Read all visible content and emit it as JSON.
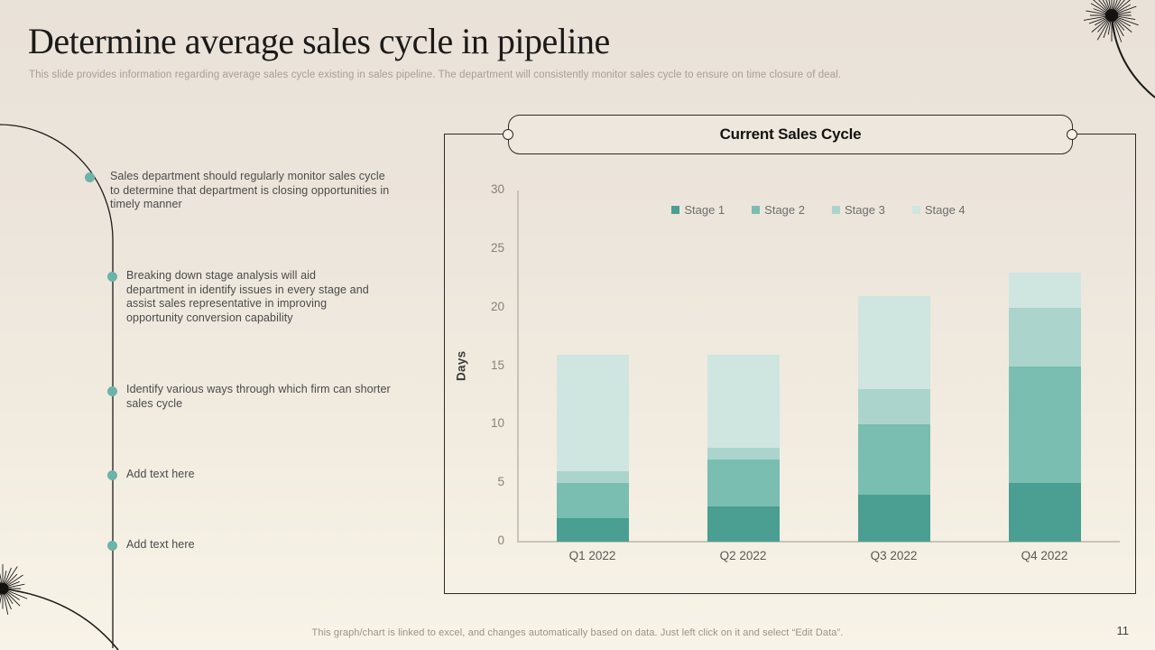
{
  "slide": {
    "title": "Determine average sales cycle in pipeline",
    "subtitle": "This slide provides information regarding average sales cycle existing in sales pipeline. The department will consistently monitor sales cycle to ensure on time closure of deal.",
    "footer_note": "This graph/chart is linked to excel, and changes automatically based on data. Just left click on it and select “Edit Data”.",
    "page_number": "11"
  },
  "bullets": [
    {
      "text": "Sales department should regularly monitor sales cycle\nto determine that department is closing opportunities in\ntimely manner"
    },
    {
      "text": "Breaking down stage analysis will aid\ndepartment in identify issues in every stage and\nassist sales representative in improving\nopportunity conversion capability"
    },
    {
      "text": "Identify various ways through which firm can shorter\nsales cycle"
    },
    {
      "text": "Add text here"
    },
    {
      "text": "Add text here"
    }
  ],
  "chart_data": {
    "type": "bar",
    "stacked": true,
    "title": "Current Sales Cycle",
    "categories": [
      "Q1 2022",
      "Q2 2022",
      "Q3 2022",
      "Q4 2022"
    ],
    "series": [
      {
        "name": "Stage 1",
        "color": "#4a9e92",
        "values": [
          2,
          3,
          4,
          5
        ]
      },
      {
        "name": "Stage 2",
        "color": "#7abdb1",
        "values": [
          3,
          4,
          6,
          10
        ]
      },
      {
        "name": "Stage 3",
        "color": "#abd5cc",
        "values": [
          1,
          1,
          3,
          5
        ]
      },
      {
        "name": "Stage 4",
        "color": "#cfe5e0",
        "values": [
          10,
          8,
          8,
          3
        ]
      }
    ],
    "totals": [
      16,
      16,
      21,
      23
    ],
    "xlabel": "",
    "ylabel": "Days",
    "ylim": [
      0,
      30
    ],
    "yticks": [
      0,
      5,
      10,
      15,
      20,
      25,
      30
    ],
    "grid": false,
    "legend_position": "top-center"
  },
  "accents": {
    "bullet_dot": "#6cb3aa",
    "decoration_line": "#1d1b19",
    "axis_line": "#c9c3b9"
  }
}
